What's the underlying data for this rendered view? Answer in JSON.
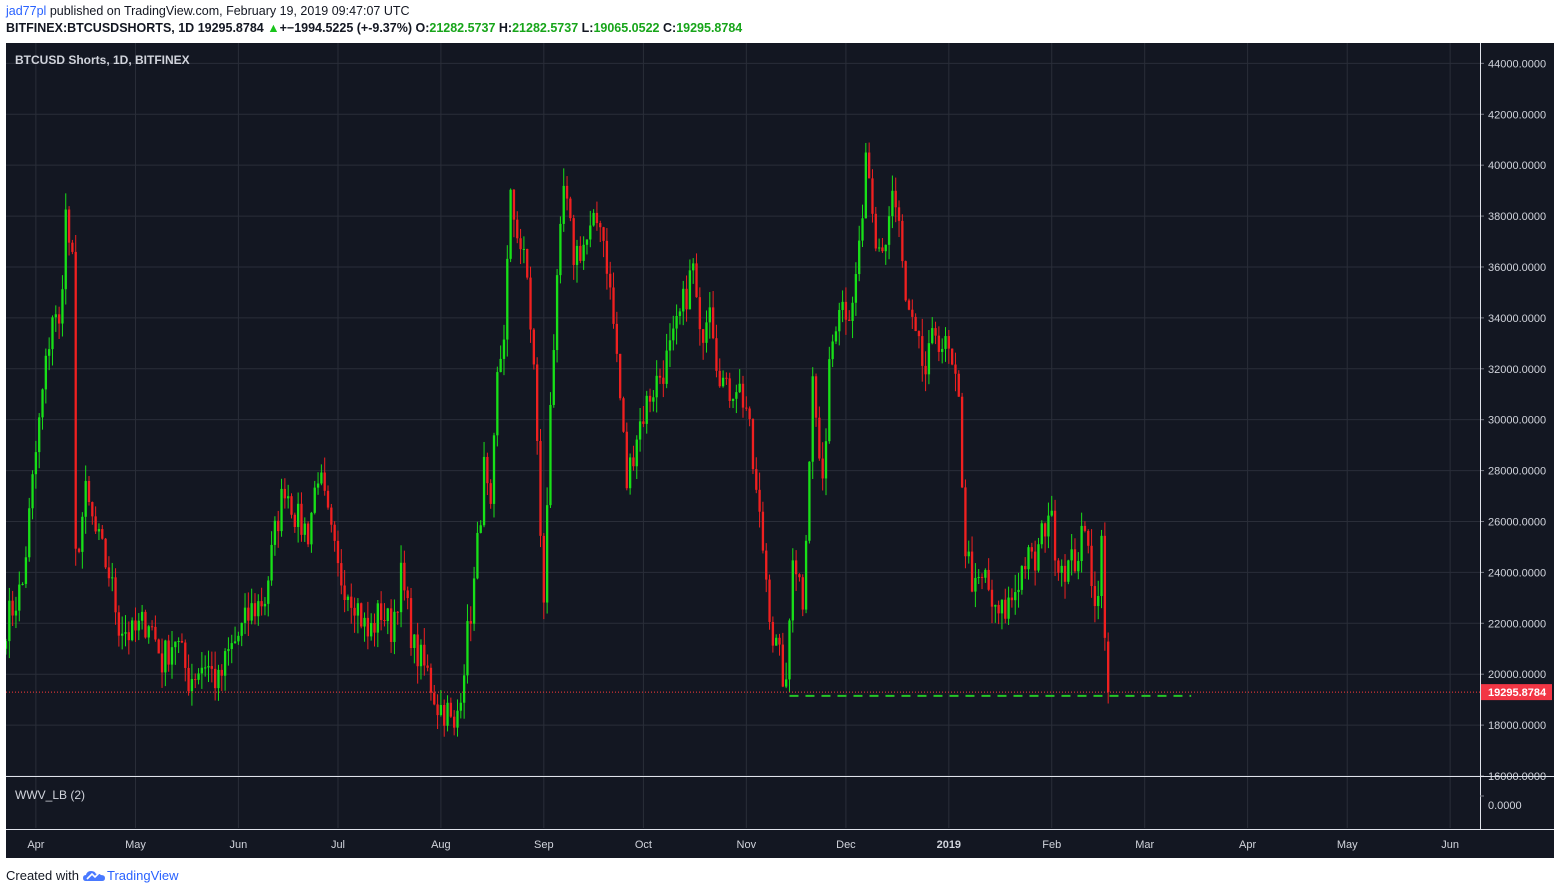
{
  "header": {
    "author": "jad77pl",
    "published_text": "published on TradingView.com, February 19, 2019 09:47:07 UTC",
    "symbol": "BITFINEX:BTCUSDSHORTS, 1D",
    "last_value": "19295.8784",
    "change_arrow": "▲",
    "change_text": "+−1994.5225 (+-9.37%)",
    "o_label": "O:",
    "o_value": "21282.5737",
    "h_label": "H:",
    "h_value": "21282.5737",
    "l_label": "L:",
    "l_value": "19065.0522",
    "c_label": "C:",
    "c_value": "19295.8784"
  },
  "pane": {
    "title": "BTCUSD Shorts, 1D, BITFINEX",
    "indicator_label": "WWV_LB (2)",
    "indicator_value": "0.0000",
    "price_tag": "19295.8784"
  },
  "footer": {
    "created_with": "Created with",
    "brand": "TradingView"
  },
  "colors": {
    "background": "#131722",
    "up": "#18e018",
    "down": "#f02020",
    "grid": "#2a2e39",
    "price_line": "#ff3b3b",
    "support_line": "#27c427"
  },
  "chart_data": {
    "type": "candlestick",
    "title": "BTCUSD Shorts, 1D, BITFINEX",
    "x_tick_labels": [
      "Apr",
      "May",
      "Jun",
      "Jul",
      "Aug",
      "Sep",
      "Oct",
      "Nov",
      "Dec",
      "2019",
      "Feb",
      "Mar",
      "Apr",
      "May",
      "Jun"
    ],
    "y_tick_labels": [
      "16000.0000",
      "18000.0000",
      "20000.0000",
      "22000.0000",
      "24000.0000",
      "26000.0000",
      "28000.0000",
      "30000.0000",
      "32000.0000",
      "34000.0000",
      "36000.0000",
      "38000.0000",
      "40000.0000",
      "42000.0000",
      "44000.0000"
    ],
    "ylim": [
      16000,
      44800
    ],
    "x_range": [
      "2018-03-23",
      "2019-06-10"
    ],
    "grid": true,
    "last_close": 19295.8784,
    "support_level": 19150,
    "support_from": "2018-11-14",
    "support_to": "2019-03-15",
    "close_series": [
      [
        "2018-03-23",
        22000
      ],
      [
        "2018-03-28",
        23500
      ],
      [
        "2018-03-31",
        27500
      ],
      [
        "2018-04-03",
        31000
      ],
      [
        "2018-04-06",
        34200
      ],
      [
        "2018-04-08",
        33500
      ],
      [
        "2018-04-10",
        38000
      ],
      [
        "2018-04-12",
        36000
      ],
      [
        "2018-04-13",
        24500
      ],
      [
        "2018-04-16",
        27000
      ],
      [
        "2018-04-19",
        25500
      ],
      [
        "2018-04-23",
        24000
      ],
      [
        "2018-04-26",
        22000
      ],
      [
        "2018-04-30",
        21500
      ],
      [
        "2018-05-05",
        22200
      ],
      [
        "2018-05-09",
        20500
      ],
      [
        "2018-05-13",
        21500
      ],
      [
        "2018-05-17",
        19800
      ],
      [
        "2018-05-22",
        20500
      ],
      [
        "2018-05-26",
        19600
      ],
      [
        "2018-05-29",
        20800
      ],
      [
        "2018-06-01",
        21500
      ],
      [
        "2018-06-05",
        22500
      ],
      [
        "2018-06-09",
        23000
      ],
      [
        "2018-06-12",
        25500
      ],
      [
        "2018-06-15",
        27500
      ],
      [
        "2018-06-19",
        26000
      ],
      [
        "2018-06-22",
        25600
      ],
      [
        "2018-06-25",
        28000
      ],
      [
        "2018-06-28",
        26000
      ],
      [
        "2018-07-01",
        24000
      ],
      [
        "2018-07-06",
        23000
      ],
      [
        "2018-07-10",
        21500
      ],
      [
        "2018-07-14",
        22500
      ],
      [
        "2018-07-17",
        21800
      ],
      [
        "2018-07-20",
        23800
      ],
      [
        "2018-07-24",
        21000
      ],
      [
        "2018-07-28",
        20000
      ],
      [
        "2018-07-31",
        18800
      ],
      [
        "2018-08-03",
        18500
      ],
      [
        "2018-08-05",
        17600
      ],
      [
        "2018-08-08",
        20500
      ],
      [
        "2018-08-11",
        23500
      ],
      [
        "2018-08-14",
        28000
      ],
      [
        "2018-08-16",
        26000
      ],
      [
        "2018-08-18",
        31500
      ],
      [
        "2018-08-20",
        33500
      ],
      [
        "2018-08-22",
        38500
      ],
      [
        "2018-08-24",
        37500
      ],
      [
        "2018-08-27",
        35500
      ],
      [
        "2018-08-29",
        32000
      ],
      [
        "2018-09-01",
        22500
      ],
      [
        "2018-09-03",
        31000
      ],
      [
        "2018-09-07",
        39000
      ],
      [
        "2018-09-10",
        36500
      ],
      [
        "2018-09-14",
        37000
      ],
      [
        "2018-09-18",
        38000
      ],
      [
        "2018-09-20",
        36200
      ],
      [
        "2018-09-23",
        32500
      ],
      [
        "2018-09-26",
        27500
      ],
      [
        "2018-09-29",
        29500
      ],
      [
        "2018-10-03",
        31000
      ],
      [
        "2018-10-07",
        32000
      ],
      [
        "2018-10-10",
        33000
      ],
      [
        "2018-10-13",
        34500
      ],
      [
        "2018-10-16",
        36000
      ],
      [
        "2018-10-18",
        33000
      ],
      [
        "2018-10-21",
        35000
      ],
      [
        "2018-10-23",
        32500
      ],
      [
        "2018-10-26",
        31000
      ],
      [
        "2018-10-29",
        31500
      ],
      [
        "2018-11-01",
        30500
      ],
      [
        "2018-11-04",
        27000
      ],
      [
        "2018-11-06",
        25000
      ],
      [
        "2018-11-09",
        21500
      ],
      [
        "2018-11-12",
        20000
      ],
      [
        "2018-11-13",
        19200
      ],
      [
        "2018-11-15",
        25000
      ],
      [
        "2018-11-18",
        23000
      ],
      [
        "2018-11-21",
        31500
      ],
      [
        "2018-11-24",
        27000
      ],
      [
        "2018-11-26",
        32500
      ],
      [
        "2018-11-29",
        35000
      ],
      [
        "2018-12-03",
        34000
      ],
      [
        "2018-12-06",
        38000
      ],
      [
        "2018-12-07",
        40000
      ],
      [
        "2018-12-10",
        36500
      ],
      [
        "2018-12-13",
        37000
      ],
      [
        "2018-12-15",
        39000
      ],
      [
        "2018-12-17",
        37500
      ],
      [
        "2018-12-19",
        34500
      ],
      [
        "2018-12-22",
        33000
      ],
      [
        "2018-12-25",
        31800
      ],
      [
        "2018-12-28",
        33500
      ],
      [
        "2019-01-01",
        32500
      ],
      [
        "2019-01-04",
        30500
      ],
      [
        "2019-01-06",
        25000
      ],
      [
        "2019-01-09",
        23200
      ],
      [
        "2019-01-12",
        23800
      ],
      [
        "2019-01-15",
        22200
      ],
      [
        "2019-01-18",
        22500
      ],
      [
        "2019-01-20",
        23000
      ],
      [
        "2019-01-24",
        24500
      ],
      [
        "2019-01-27",
        24300
      ],
      [
        "2019-01-31",
        26500
      ],
      [
        "2019-02-03",
        24500
      ],
      [
        "2019-02-06",
        24200
      ],
      [
        "2019-02-08",
        24500
      ],
      [
        "2019-02-10",
        25200
      ],
      [
        "2019-02-12",
        25500
      ],
      [
        "2019-02-14",
        22500
      ],
      [
        "2019-02-16",
        25000
      ],
      [
        "2019-02-17",
        21300
      ],
      [
        "2019-02-18",
        19296
      ]
    ]
  }
}
